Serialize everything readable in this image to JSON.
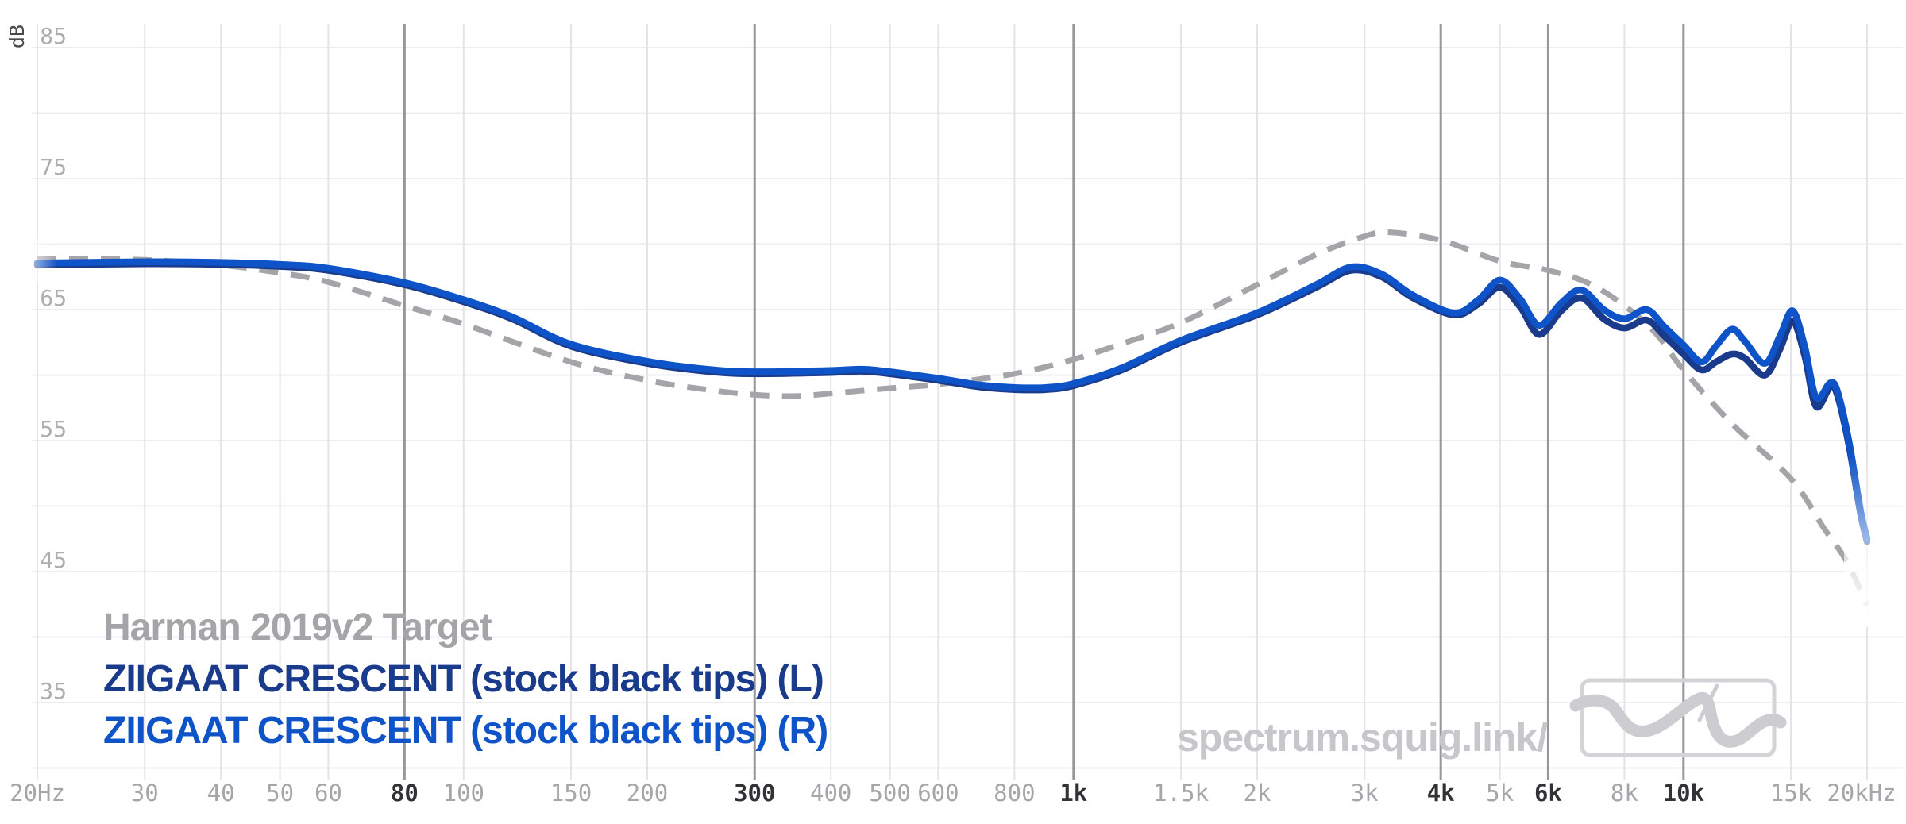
{
  "watermark": {
    "text": "spectrum.squig.link/"
  },
  "logo": {
    "name": "squiglink-wave-logo"
  },
  "colors": {
    "background": "#ffffff",
    "grid_horizontal": "#ededf0",
    "grid_vertical_minor": "#e4e4e7",
    "grid_vertical_major": "#97979b",
    "tick_label_minor": "#a6a6aa",
    "tick_label_major": "#323236",
    "y_tick_label": "#aeaeb2",
    "target_gray": "#a5a5a9",
    "left_channel_blue": "#1a3a8c",
    "right_channel_blue": "#0e54c8",
    "watermark_gray": "#c7c7cb",
    "logo_gray": "#cdcdd1"
  },
  "chart_data": {
    "type": "line",
    "title": "",
    "legend_position": "bottom-left",
    "grid": true,
    "x_axis": {
      "unit": "Hz",
      "scale": "log",
      "min": 20,
      "max": 20000,
      "ticks": [
        {
          "f": 20,
          "label": "20Hz",
          "major": false
        },
        {
          "f": 30,
          "label": "30",
          "major": false
        },
        {
          "f": 40,
          "label": "40",
          "major": false
        },
        {
          "f": 50,
          "label": "50",
          "major": false
        },
        {
          "f": 60,
          "label": "60",
          "major": false
        },
        {
          "f": 80,
          "label": "80",
          "major": true
        },
        {
          "f": 100,
          "label": "100",
          "major": false
        },
        {
          "f": 150,
          "label": "150",
          "major": false
        },
        {
          "f": 200,
          "label": "200",
          "major": false
        },
        {
          "f": 300,
          "label": "300",
          "major": true
        },
        {
          "f": 400,
          "label": "400",
          "major": false
        },
        {
          "f": 500,
          "label": "500",
          "major": false
        },
        {
          "f": 600,
          "label": "600",
          "major": false
        },
        {
          "f": 800,
          "label": "800",
          "major": false
        },
        {
          "f": 1000,
          "label": "1k",
          "major": true
        },
        {
          "f": 1500,
          "label": "1.5k",
          "major": false
        },
        {
          "f": 2000,
          "label": "2k",
          "major": false
        },
        {
          "f": 3000,
          "label": "3k",
          "major": false
        },
        {
          "f": 4000,
          "label": "4k",
          "major": true
        },
        {
          "f": 5000,
          "label": "5k",
          "major": false
        },
        {
          "f": 6000,
          "label": "6k",
          "major": true
        },
        {
          "f": 8000,
          "label": "8k",
          "major": false
        },
        {
          "f": 10000,
          "label": "10k",
          "major": true
        },
        {
          "f": 15000,
          "label": "15k",
          "major": false
        },
        {
          "f": 20000,
          "label": "20kHz",
          "major": false
        }
      ]
    },
    "y_axis": {
      "label": "dB",
      "unit": "dB",
      "min": 30,
      "max": 85,
      "gridline_step": 5,
      "labeled_ticks": [
        85,
        75,
        65,
        55,
        45,
        35
      ]
    },
    "series": [
      {
        "name": "Harman 2019v2 Target",
        "color": "#a5a5a9",
        "style": "dashed",
        "points": [
          [
            20,
            68.9
          ],
          [
            30,
            68.8
          ],
          [
            40,
            68.4
          ],
          [
            50,
            67.8
          ],
          [
            60,
            67.1
          ],
          [
            80,
            65.3
          ],
          [
            100,
            63.9
          ],
          [
            150,
            61.0
          ],
          [
            200,
            59.6
          ],
          [
            250,
            58.9
          ],
          [
            300,
            58.5
          ],
          [
            350,
            58.4
          ],
          [
            400,
            58.6
          ],
          [
            500,
            59.0
          ],
          [
            600,
            59.3
          ],
          [
            800,
            60.1
          ],
          [
            1000,
            61.2
          ],
          [
            1200,
            62.4
          ],
          [
            1500,
            64.0
          ],
          [
            2000,
            66.9
          ],
          [
            2500,
            69.2
          ],
          [
            3000,
            70.6
          ],
          [
            3300,
            70.9
          ],
          [
            4000,
            70.3
          ],
          [
            5000,
            68.7
          ],
          [
            6000,
            68.0
          ],
          [
            7000,
            67.0
          ],
          [
            8000,
            65.3
          ],
          [
            9000,
            63.2
          ],
          [
            10000,
            60.4
          ],
          [
            12000,
            56.3
          ],
          [
            15000,
            52.1
          ],
          [
            17000,
            48.3
          ],
          [
            18500,
            45.8
          ],
          [
            20000,
            42.4
          ]
        ]
      },
      {
        "name": "ZIIGAAT CRESCENT (stock black tips) (L)",
        "color": "#1a3a8c",
        "style": "solid",
        "points": [
          [
            20,
            68.4
          ],
          [
            30,
            68.5
          ],
          [
            40,
            68.45
          ],
          [
            50,
            68.3
          ],
          [
            60,
            68.0
          ],
          [
            80,
            66.9
          ],
          [
            100,
            65.6
          ],
          [
            120,
            64.3
          ],
          [
            150,
            62.2
          ],
          [
            200,
            60.9
          ],
          [
            250,
            60.3
          ],
          [
            300,
            60.1
          ],
          [
            400,
            60.2
          ],
          [
            450,
            60.3
          ],
          [
            500,
            60.1
          ],
          [
            600,
            59.6
          ],
          [
            700,
            59.1
          ],
          [
            800,
            58.9
          ],
          [
            900,
            58.9
          ],
          [
            1000,
            59.2
          ],
          [
            1200,
            60.4
          ],
          [
            1500,
            62.5
          ],
          [
            2000,
            64.6
          ],
          [
            2500,
            66.7
          ],
          [
            2850,
            68.0
          ],
          [
            3200,
            67.5
          ],
          [
            3600,
            65.9
          ],
          [
            4200,
            64.6
          ],
          [
            4600,
            65.4
          ],
          [
            5000,
            66.7
          ],
          [
            5400,
            65.2
          ],
          [
            5800,
            63.1
          ],
          [
            6300,
            64.9
          ],
          [
            6800,
            65.9
          ],
          [
            7400,
            64.3
          ],
          [
            8000,
            63.6
          ],
          [
            8700,
            64.2
          ],
          [
            9300,
            63.0
          ],
          [
            10000,
            61.6
          ],
          [
            10700,
            60.4
          ],
          [
            11300,
            61.0
          ],
          [
            12000,
            61.6
          ],
          [
            12600,
            61.3
          ],
          [
            13600,
            60.0
          ],
          [
            14400,
            62.0
          ],
          [
            15100,
            64.1
          ],
          [
            15800,
            61.5
          ],
          [
            16500,
            57.6
          ],
          [
            17400,
            59.1
          ],
          [
            17900,
            58.4
          ],
          [
            18700,
            54.5
          ],
          [
            19500,
            49.5
          ],
          [
            20000,
            47.3
          ]
        ]
      },
      {
        "name": "ZIIGAAT CRESCENT (stock black tips) (R)",
        "color": "#0e54c8",
        "style": "solid",
        "points": [
          [
            20,
            68.55
          ],
          [
            30,
            68.65
          ],
          [
            40,
            68.6
          ],
          [
            50,
            68.45
          ],
          [
            60,
            68.15
          ],
          [
            80,
            67.05
          ],
          [
            100,
            65.75
          ],
          [
            120,
            64.45
          ],
          [
            150,
            62.35
          ],
          [
            200,
            61.05
          ],
          [
            250,
            60.45
          ],
          [
            300,
            60.25
          ],
          [
            400,
            60.35
          ],
          [
            450,
            60.45
          ],
          [
            500,
            60.25
          ],
          [
            600,
            59.75
          ],
          [
            700,
            59.25
          ],
          [
            800,
            59.05
          ],
          [
            900,
            59.05
          ],
          [
            1000,
            59.35
          ],
          [
            1200,
            60.55
          ],
          [
            1500,
            62.65
          ],
          [
            2000,
            64.75
          ],
          [
            2500,
            66.9
          ],
          [
            2850,
            68.25
          ],
          [
            3200,
            67.7
          ],
          [
            3600,
            66.1
          ],
          [
            4200,
            64.75
          ],
          [
            4600,
            65.7
          ],
          [
            5000,
            67.25
          ],
          [
            5400,
            65.8
          ],
          [
            5800,
            63.8
          ],
          [
            6300,
            65.5
          ],
          [
            6800,
            66.5
          ],
          [
            7400,
            65.0
          ],
          [
            8000,
            64.3
          ],
          [
            8700,
            65.0
          ],
          [
            9300,
            63.7
          ],
          [
            10000,
            62.3
          ],
          [
            10700,
            61.0
          ],
          [
            11300,
            62.2
          ],
          [
            12000,
            63.5
          ],
          [
            12600,
            62.6
          ],
          [
            13600,
            60.9
          ],
          [
            14400,
            63.0
          ],
          [
            15100,
            64.9
          ],
          [
            15800,
            62.2
          ],
          [
            16500,
            58.3
          ],
          [
            17400,
            59.4
          ],
          [
            17900,
            58.7
          ],
          [
            18700,
            54.8
          ],
          [
            19500,
            49.7
          ],
          [
            20000,
            47.5
          ]
        ]
      }
    ]
  }
}
